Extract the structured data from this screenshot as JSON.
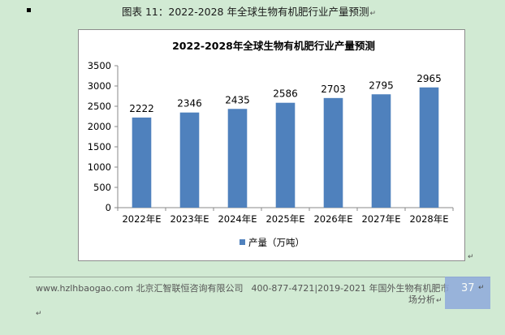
{
  "caption": "图表 11：2022-2028 年全球生物有机肥行业产量预测",
  "chart_data": {
    "type": "bar",
    "title": "2022-2028年全球生物有机肥行业产量预测",
    "categories": [
      "2022年E",
      "2023年E",
      "2024年E",
      "2025年E",
      "2026年E",
      "2027年E",
      "2028年E"
    ],
    "series": [
      {
        "name": "产量（万吨）",
        "values": [
          2222,
          2346,
          2435,
          2586,
          2703,
          2795,
          2965
        ]
      }
    ],
    "ylim": [
      0,
      3500
    ],
    "yticks": [
      0,
      500,
      1000,
      1500,
      2000,
      2500,
      3000,
      3500
    ],
    "legend_position": "bottom",
    "grid": false,
    "colors": {
      "bar": "#4f81bd"
    }
  },
  "footer": {
    "website": "www.hzlhbaogao.com",
    "company": "北京汇智联恒咨询有限公司",
    "phone_title": "400-877-4721|2019-2021 年国外生物有机肥市",
    "title_line2": "场分析",
    "page_number": "37"
  }
}
